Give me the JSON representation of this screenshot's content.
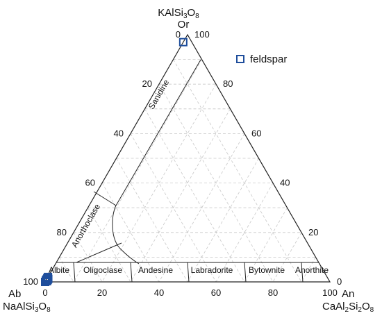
{
  "chart_data": {
    "type": "scatter",
    "subtype": "ternary",
    "vertices": {
      "top": {
        "formula_base": "KAlSi",
        "formula_sub1": "3",
        "formula_mid": "O",
        "formula_sub2": "8",
        "abbr": "Or"
      },
      "left": {
        "abbr": "Ab",
        "formula_base": "NaAlSi",
        "formula_sub1": "3",
        "formula_mid": "O",
        "formula_sub2": "8"
      },
      "right": {
        "abbr": "An",
        "formula_base": "CaAl",
        "formula_sub1": "2",
        "formula_mid": "Si",
        "formula_sub2": "2",
        "formula_end": "O",
        "formula_sub3": "8"
      }
    },
    "left_edge_ticks": [
      "0",
      "20",
      "40",
      "60",
      "80",
      "100"
    ],
    "right_edge_ticks": [
      "100",
      "80",
      "60",
      "40",
      "20",
      "0"
    ],
    "bottom_edge_ticks": [
      "0",
      "20",
      "40",
      "60",
      "80",
      "100"
    ],
    "grid": true,
    "grid_step": 10,
    "fields": [
      "Sanidine",
      "Anorthoclase",
      "Albite",
      "Oligoclase",
      "Andesine",
      "Labradorite",
      "Bytownite",
      "Anorthite"
    ],
    "series": [
      {
        "name": "feldspar",
        "color": "#1f4e9c",
        "marker": "open-square",
        "points": [
          {
            "Or": 97,
            "Ab": 3,
            "An": 0
          },
          {
            "Or": 1,
            "Ab": 99,
            "An": 0
          },
          {
            "Or": 0.5,
            "Ab": 99.5,
            "An": 0
          },
          {
            "Or": 0,
            "Ab": 100,
            "An": 0
          },
          {
            "Or": 1.5,
            "Ab": 98.5,
            "An": 0
          },
          {
            "Or": 0.8,
            "Ab": 98.7,
            "An": 0.5
          },
          {
            "Or": 0.3,
            "Ab": 99.2,
            "An": 0.5
          },
          {
            "Or": 1.2,
            "Ab": 98.3,
            "An": 0.5
          },
          {
            "Or": 0.6,
            "Ab": 99.4,
            "An": 0
          },
          {
            "Or": 2,
            "Ab": 98,
            "An": 0
          }
        ]
      }
    ],
    "legend_position": "top-right"
  }
}
